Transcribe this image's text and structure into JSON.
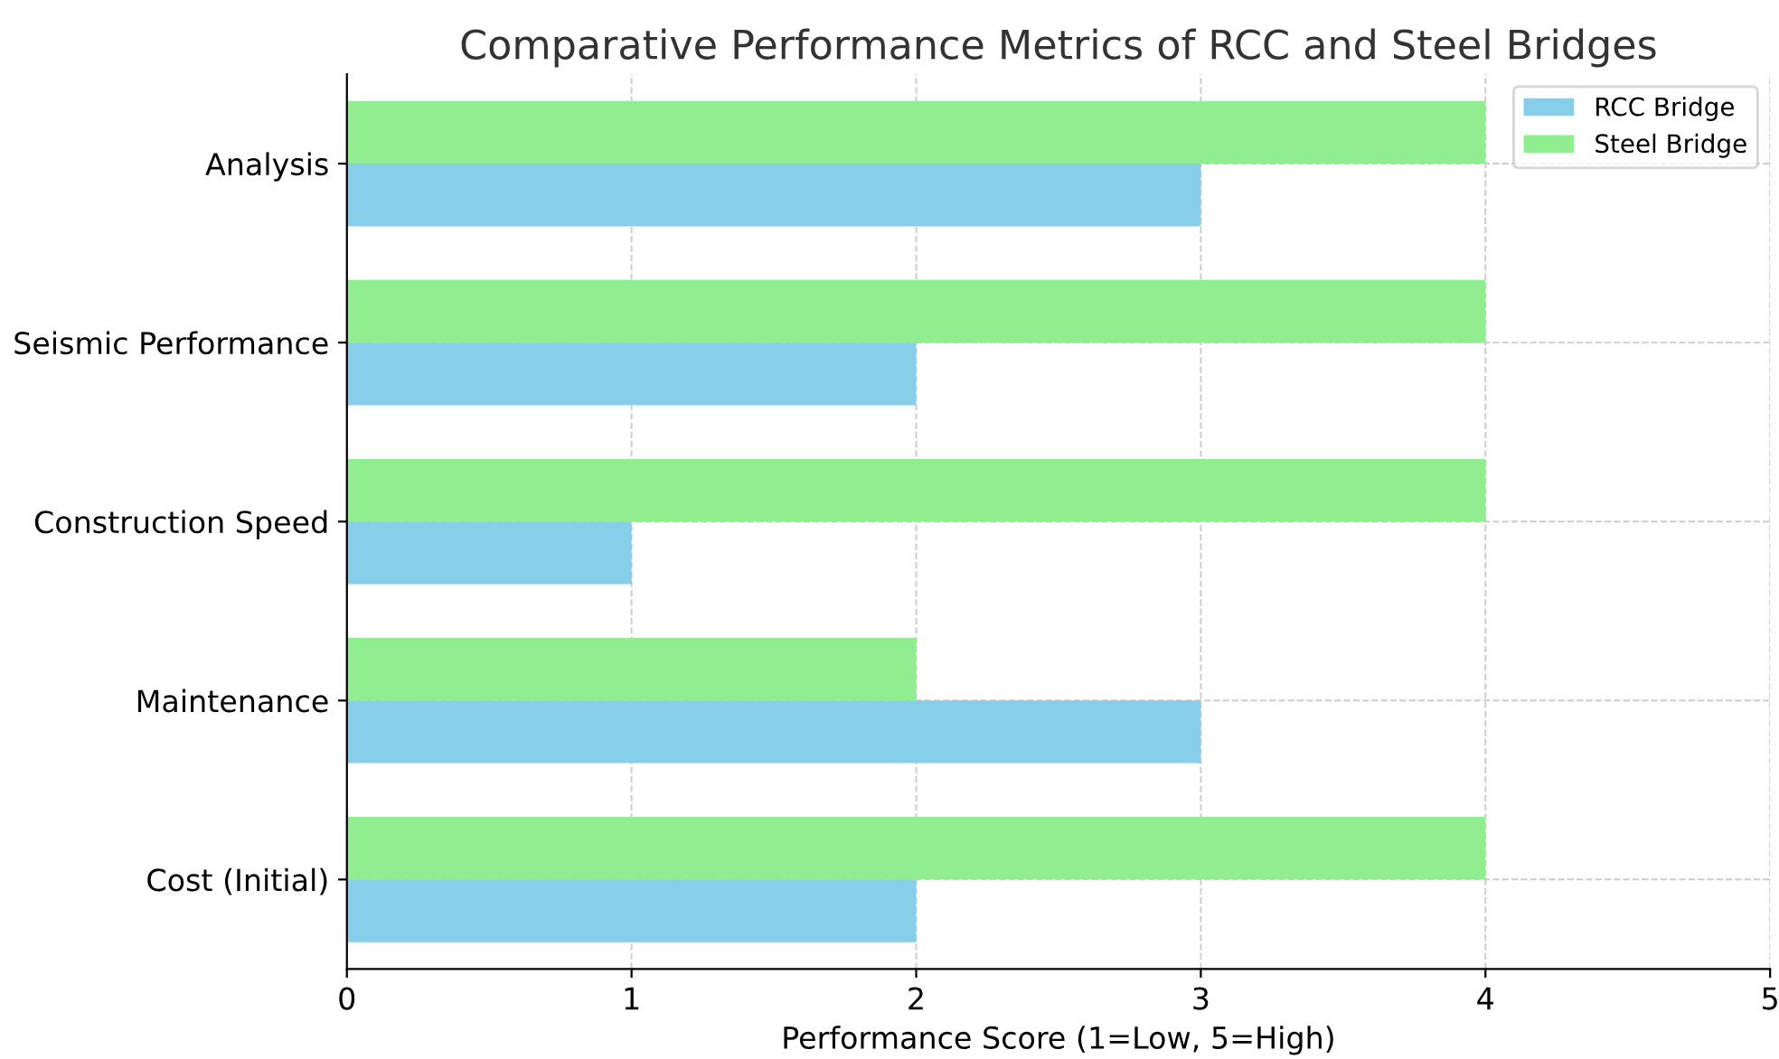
{
  "chart_data": {
    "type": "bar",
    "orientation": "horizontal",
    "title": "Comparative Performance Metrics of RCC and Steel Bridges",
    "xlabel": "Performance Score (1=Low, 5=High)",
    "categories": [
      "Analysis",
      "Seismic Performance",
      "Construction Speed",
      "Maintenance",
      "Cost (Initial)"
    ],
    "series": [
      {
        "name": "RCC Bridge",
        "color": "#87ceeb",
        "values": [
          3,
          2,
          1,
          3,
          2
        ]
      },
      {
        "name": "Steel Bridge",
        "color": "#90ee90",
        "values": [
          4,
          4,
          4,
          2,
          4
        ]
      }
    ],
    "xlim": [
      0,
      5
    ],
    "xticks": [
      0,
      1,
      2,
      3,
      4,
      5
    ],
    "grid": true,
    "legend": "top right"
  }
}
